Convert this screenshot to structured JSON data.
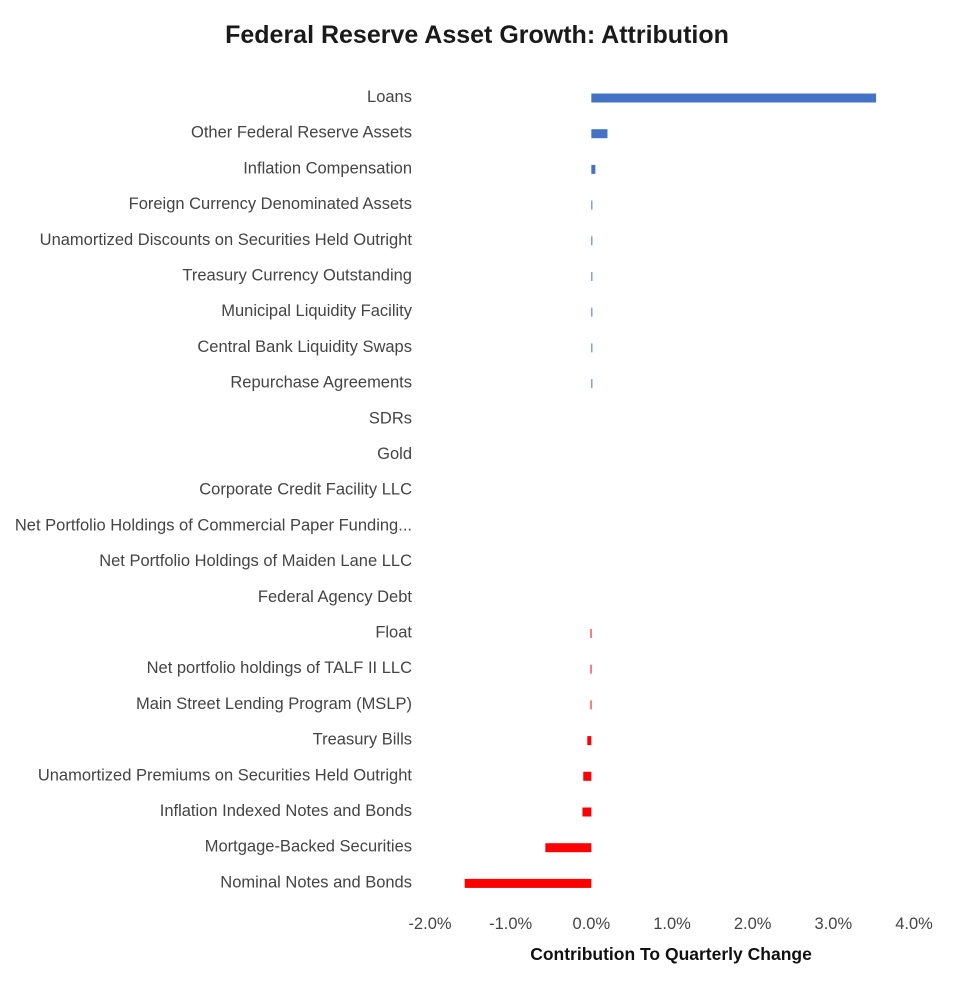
{
  "chart_data": {
    "type": "bar",
    "orientation": "horizontal",
    "title": "Federal Reserve Asset Growth: Attribution",
    "xlabel": "Contribution To Quarterly Change",
    "ylabel": "",
    "xlim": [
      -2.0,
      4.0
    ],
    "xticks": [
      -2.0,
      -1.0,
      0.0,
      1.0,
      2.0,
      3.0,
      4.0
    ],
    "xtick_labels": [
      "-2.0%",
      "-1.0%",
      "0.0%",
      "1.0%",
      "2.0%",
      "3.0%",
      "4.0%"
    ],
    "grid": false,
    "legend": "none",
    "positive_color": "#4472C4",
    "negative_color": "#FF0000",
    "categories": [
      "Loans",
      "Other Federal Reserve Assets",
      "Inflation Compensation",
      "Foreign Currency Denominated Assets",
      "Unamortized Discounts on Securities Held Outright",
      "Treasury Currency Outstanding",
      "Municipal Liquidity Facility",
      "Central Bank Liquidity Swaps",
      "Repurchase Agreements",
      "SDRs",
      "Gold",
      "Corporate Credit Facility LLC",
      "Net Portfolio Holdings of Commercial Paper Funding...",
      "Net Portfolio Holdings of Maiden Lane LLC",
      "Federal Agency Debt",
      "Float",
      "Net portfolio holdings of TALF II LLC",
      "Main Street Lending Program (MSLP)",
      "Treasury Bills",
      "Unamortized Premiums on Securities Held Outright",
      "Inflation Indexed Notes and Bonds",
      "Mortgage-Backed Securities",
      "Nominal Notes and Bonds"
    ],
    "values": [
      3.53,
      0.2,
      0.05,
      0.01,
      0.01,
      0.01,
      0.01,
      0.01,
      0.01,
      0.0,
      0.0,
      0.0,
      0.0,
      0.0,
      0.0,
      -0.01,
      -0.01,
      -0.01,
      -0.05,
      -0.1,
      -0.11,
      -0.57,
      -1.57
    ]
  }
}
